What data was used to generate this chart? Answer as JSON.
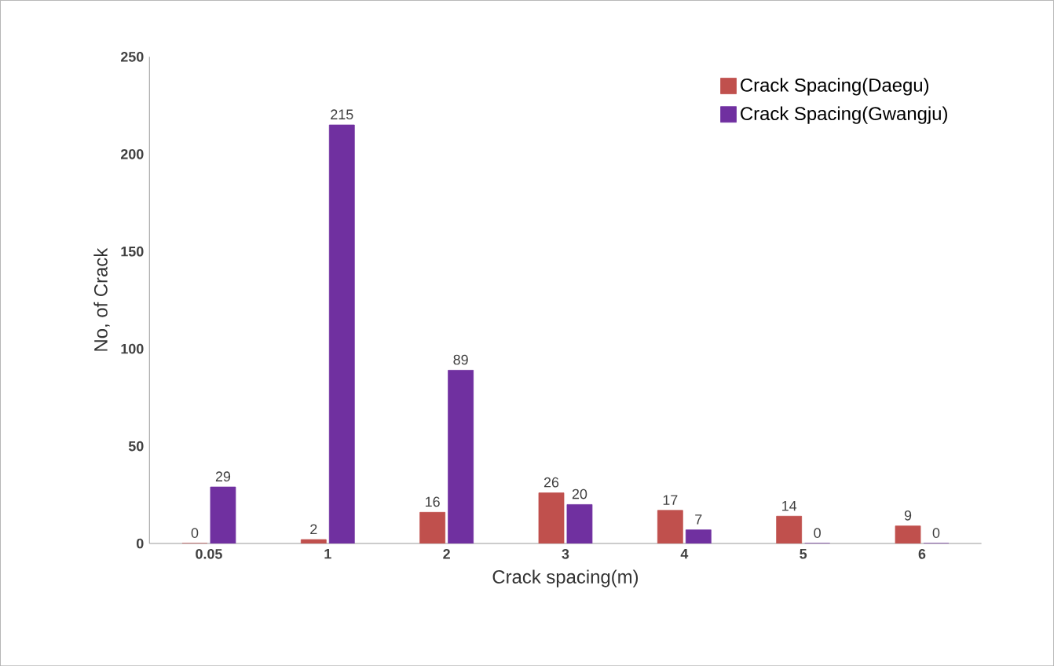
{
  "chart_data": {
    "type": "bar",
    "xlabel": "Crack spacing(m)",
    "ylabel": "No, of Crack",
    "categories": [
      "0.05",
      "1",
      "2",
      "3",
      "4",
      "5",
      "6"
    ],
    "series": [
      {
        "name": "Crack Spacing(Daegu)",
        "color": "#c0504d",
        "values": [
          0,
          2,
          16,
          26,
          17,
          14,
          9
        ]
      },
      {
        "name": "Crack Spacing(Gwangju)",
        "color": "#7030a0",
        "values": [
          29,
          215,
          89,
          20,
          7,
          0,
          0
        ]
      }
    ],
    "ylim": [
      0,
      250
    ],
    "yticks": [
      0,
      50,
      100,
      150,
      200,
      250
    ],
    "data_labels": true,
    "legend": "top right"
  }
}
